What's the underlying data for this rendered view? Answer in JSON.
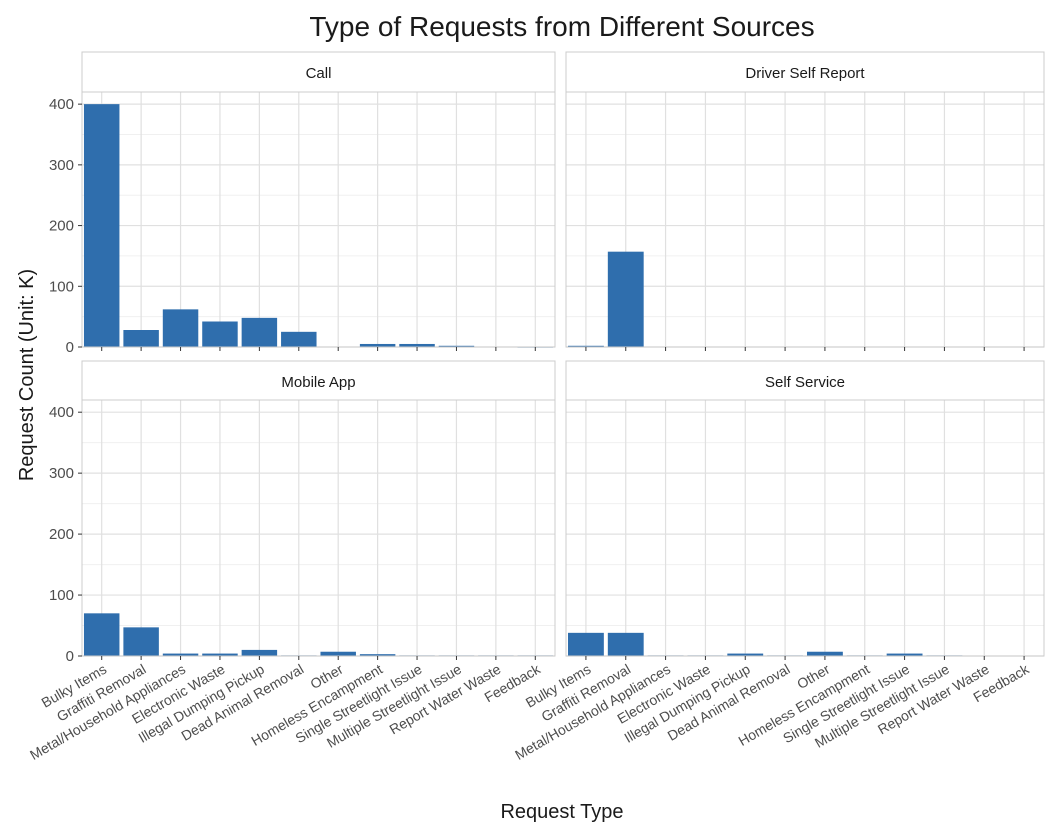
{
  "chart_data": {
    "type": "bar",
    "title": "Type of Requests from Different Sources",
    "xlabel": "Request Type",
    "ylabel": "Request Count (Unit: K)",
    "ylim": [
      0,
      420
    ],
    "yticks": [
      0,
      100,
      200,
      300,
      400
    ],
    "grid": true,
    "bar_color": "#2f6ead",
    "categories": [
      "Bulky Items",
      "Graffiti Removal",
      "Metal/Household Appliances",
      "Electronic Waste",
      "Illegal Dumping Pickup",
      "Dead Animal Removal",
      "Other",
      "Homeless Encampment",
      "Single Streetlight Issue",
      "Multiple Streetlight Issue",
      "Report Water Waste",
      "Feedback"
    ],
    "panels": [
      {
        "name": "Call",
        "values": [
          400,
          28,
          62,
          42,
          48,
          25,
          0,
          5,
          5,
          2,
          0.5,
          0.3
        ]
      },
      {
        "name": "Driver Self Report",
        "values": [
          2,
          157,
          0,
          0,
          0,
          0,
          0,
          0,
          0,
          0,
          0,
          0
        ]
      },
      {
        "name": "Mobile App",
        "values": [
          70,
          47,
          4,
          4,
          10,
          1,
          7,
          3,
          1,
          1,
          1,
          1
        ]
      },
      {
        "name": "Self Service",
        "values": [
          38,
          38,
          1,
          1,
          4,
          1,
          7,
          1,
          4,
          1,
          0,
          0
        ]
      }
    ]
  }
}
